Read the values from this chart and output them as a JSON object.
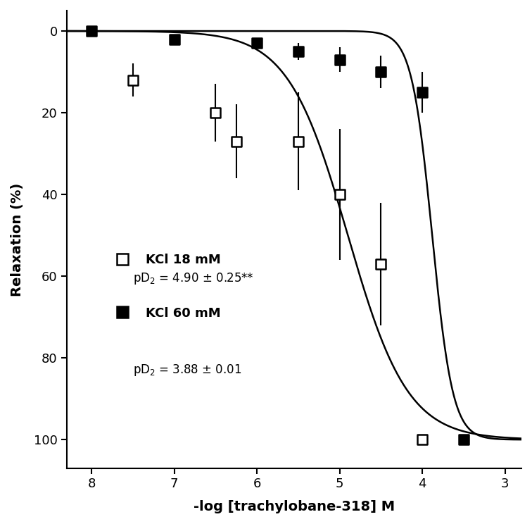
{
  "xlabel": "-log [trachylobane-318] M",
  "ylabel": "Relaxation (%)",
  "xticks": [
    8,
    7,
    6,
    5,
    4,
    3
  ],
  "yticks": [
    0,
    20,
    40,
    60,
    80,
    100
  ],
  "xlim_left": 8.3,
  "xlim_right": 2.8,
  "ylim_bottom": 107,
  "ylim_top": -5,
  "kci18_points": [
    [
      7.5,
      12,
      4
    ],
    [
      6.5,
      20,
      7
    ],
    [
      6.25,
      27,
      9
    ],
    [
      5.5,
      27,
      12
    ],
    [
      5.0,
      40,
      16
    ],
    [
      4.5,
      57,
      15
    ],
    [
      4.0,
      100,
      0
    ]
  ],
  "kci60_points": [
    [
      8.0,
      0,
      1
    ],
    [
      7.0,
      2,
      1
    ],
    [
      6.0,
      3,
      1
    ],
    [
      5.5,
      5,
      2
    ],
    [
      5.0,
      7,
      3
    ],
    [
      4.5,
      10,
      4
    ],
    [
      4.0,
      15,
      5
    ],
    [
      3.5,
      100,
      0
    ]
  ],
  "pD2_18": 4.9,
  "pD2_18_err": 0.25,
  "hillslope_18": 1.2,
  "pD2_60": 3.88,
  "pD2_60_err": 0.01,
  "hillslope_60": 3.5,
  "background_color": "#ffffff",
  "line_color": "#000000",
  "fontsize_label": 14,
  "fontsize_tick": 13,
  "fontsize_legend": 13,
  "fontsize_annot": 12
}
